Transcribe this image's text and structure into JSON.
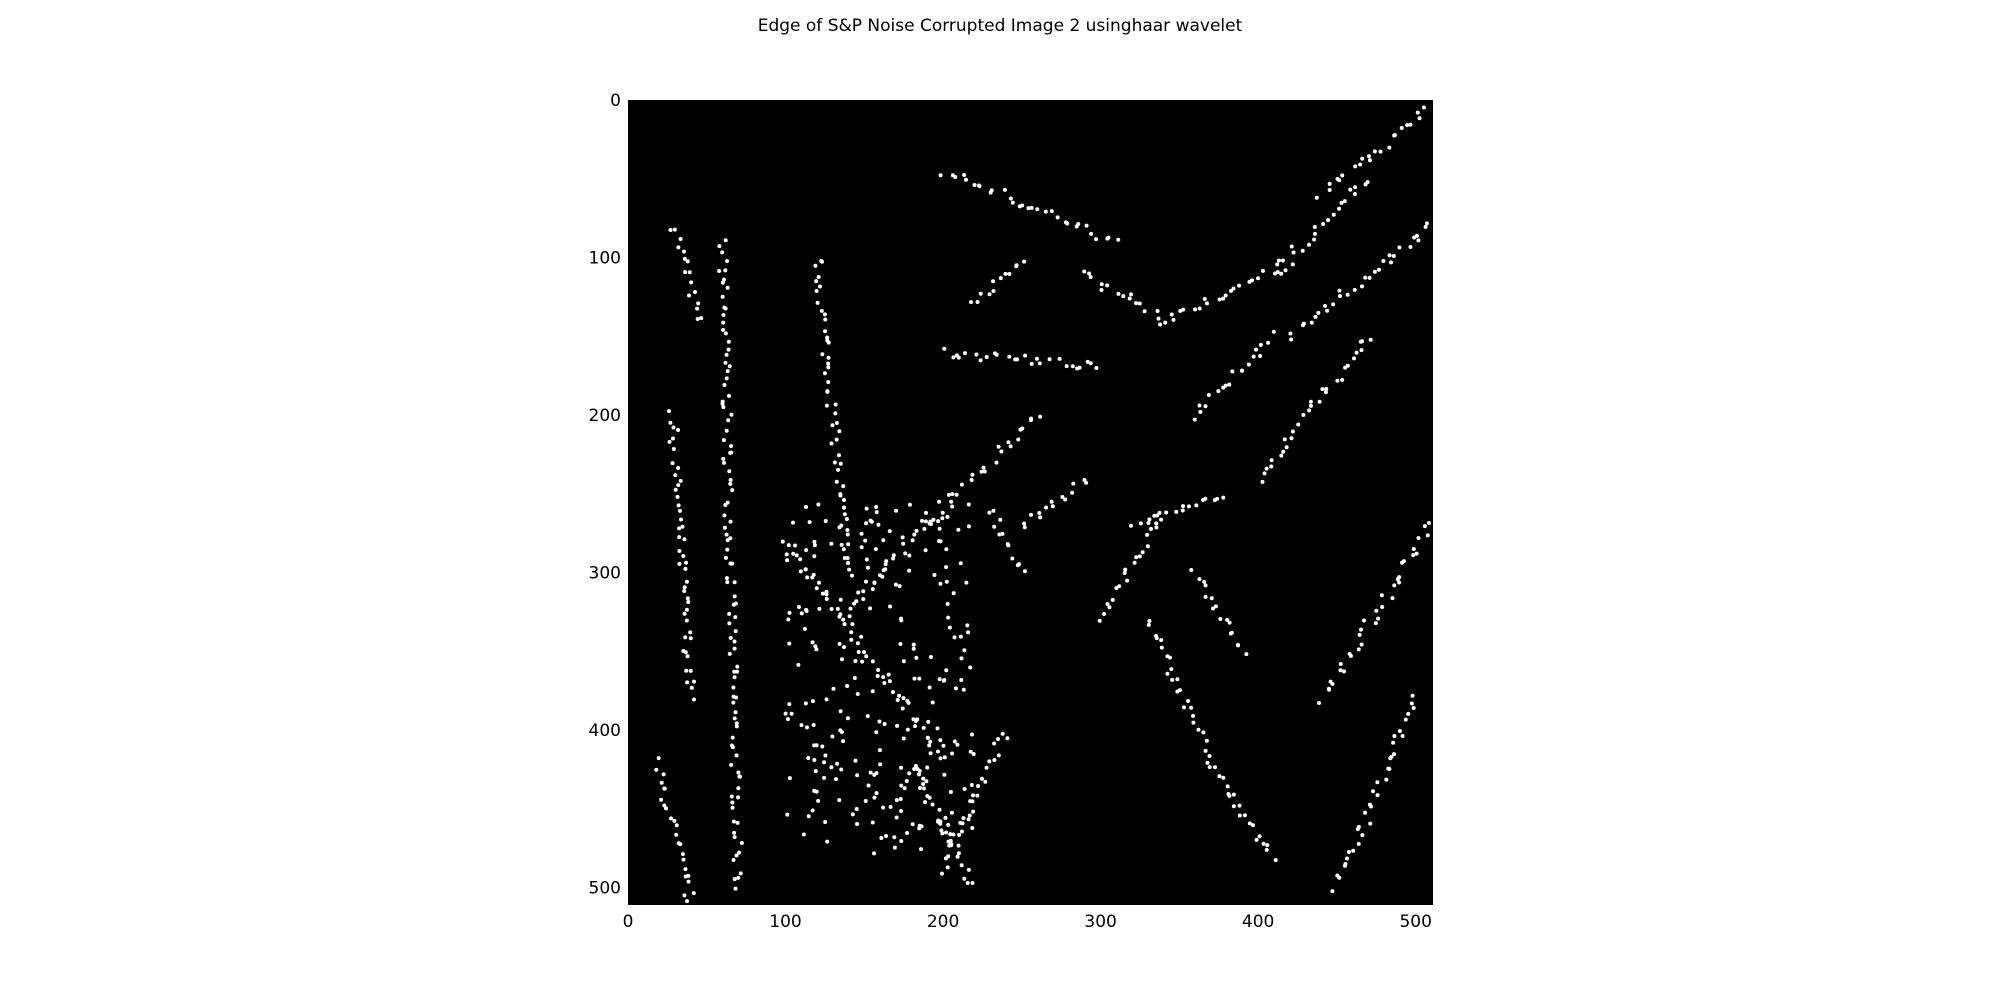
{
  "figure": {
    "title": "Edge of S&P Noise Corrupted Image 2 usinghaar wavelet",
    "background_color": "#000000",
    "edge_color": "#ffffff"
  },
  "image_axes": {
    "x_range": [
      0,
      511
    ],
    "y_range": [
      0,
      511
    ],
    "y_inverted": true,
    "x_ticks": [
      "0",
      "100",
      "200",
      "300",
      "400",
      "500"
    ],
    "y_ticks": [
      "0",
      "100",
      "200",
      "300",
      "400",
      "500"
    ]
  }
}
